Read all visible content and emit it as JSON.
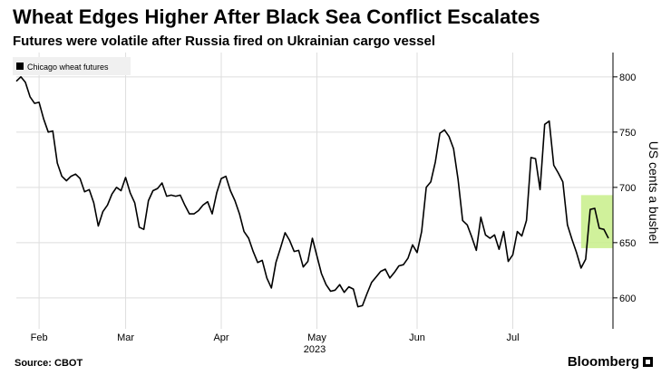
{
  "chart_data": {
    "type": "line",
    "title": "Wheat Edges Higher After Black Sea Conflict Escalates",
    "subtitle": "Futures were volatile after Russia fired on Ukrainian cargo vessel",
    "ylabel": "US cents a bushel",
    "xlabel": "2023",
    "ylim": [
      572,
      822
    ],
    "yticks": [
      600,
      650,
      700,
      750,
      800
    ],
    "xlim": [
      0,
      131
    ],
    "xticks": [
      {
        "label": "Feb",
        "x": 5
      },
      {
        "label": "Mar",
        "x": 24
      },
      {
        "label": "Apr",
        "x": 45
      },
      {
        "label": "May",
        "x": 66
      },
      {
        "label": "Jun",
        "x": 88
      },
      {
        "label": "Jul",
        "x": 109
      }
    ],
    "legend": "Chicago wheat futures",
    "highlight": {
      "x_range": [
        124,
        131
      ],
      "y_range": [
        645,
        693
      ],
      "color": "#c8ee8a"
    },
    "series": [
      {
        "name": "Chicago wheat futures",
        "color": "#000000",
        "values": [
          796,
          800,
          795,
          782,
          776,
          777,
          762,
          750,
          751,
          722,
          710,
          706,
          710,
          712,
          708,
          696,
          698,
          686,
          665,
          678,
          684,
          694,
          700,
          697,
          709,
          695,
          686,
          664,
          662,
          688,
          697,
          699,
          704,
          692,
          693,
          692,
          693,
          684,
          676,
          676,
          679,
          684,
          687,
          676,
          695,
          708,
          710,
          697,
          688,
          676,
          660,
          654,
          642,
          632,
          634,
          618,
          609,
          632,
          645,
          659,
          652,
          642,
          643,
          628,
          633,
          654,
          638,
          622,
          612,
          606,
          607,
          612,
          605,
          610,
          608,
          592,
          593,
          604,
          614,
          619,
          624,
          626,
          618,
          623,
          629,
          630,
          636,
          648,
          641,
          660,
          700,
          705,
          723,
          749,
          752,
          746,
          735,
          707,
          670,
          666,
          655,
          643,
          673,
          657,
          654,
          657,
          644,
          660,
          633,
          639,
          660,
          656,
          670,
          727,
          726,
          698,
          757,
          760,
          720,
          713,
          705,
          666,
          653,
          641,
          627,
          635,
          680,
          681,
          663,
          662,
          654
        ]
      }
    ]
  },
  "footer": {
    "source": "Source: CBOT",
    "brand": "Bloomberg"
  }
}
